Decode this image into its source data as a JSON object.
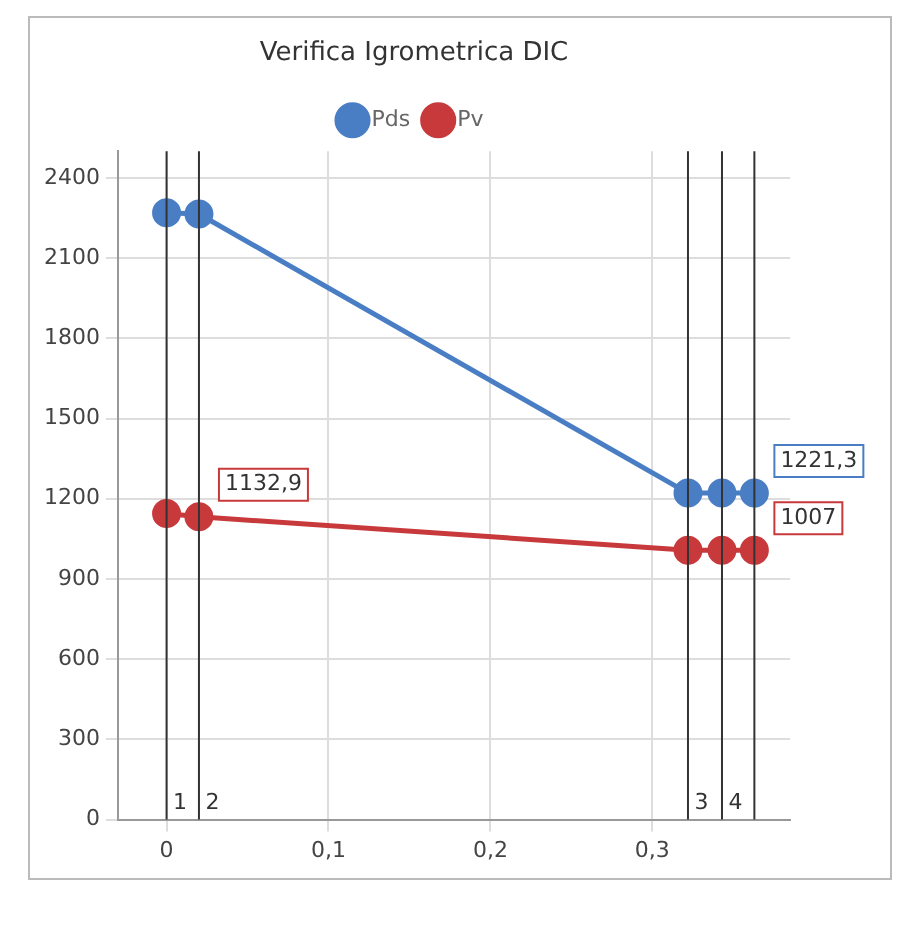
{
  "chart_data": {
    "type": "line",
    "title": "Verifica Igrometrica DIC",
    "x": [
      0,
      0.02,
      0.322,
      0.343,
      0.363
    ],
    "series": [
      {
        "name": "Pds",
        "color": "#4a7ec4",
        "values": [
          2270,
          2265,
          1221.3,
          1221.3,
          1221.3
        ],
        "value_labels": [
          null,
          null,
          null,
          null,
          "1221,3"
        ]
      },
      {
        "name": "Pv",
        "color": "#c8393c",
        "values": [
          1145,
          1132.9,
          1007,
          1007,
          1007
        ],
        "value_labels": [
          null,
          "1132,9",
          null,
          null,
          "1007"
        ]
      }
    ],
    "xlim": [
      -0.03,
      0.385
    ],
    "xticks": [
      0,
      {
        "value": 0.1,
        "label": "0,1"
      },
      {
        "value": 0.2,
        "label": "0,2"
      },
      {
        "value": 0.3,
        "label": "0,3"
      }
    ],
    "ylim": [
      0,
      2500
    ],
    "yticks": [
      0,
      300,
      600,
      900,
      1200,
      1500,
      1800,
      2100,
      2400
    ],
    "ref_lines": [
      {
        "axis": "x",
        "value": 0,
        "color": "#333333"
      },
      {
        "axis": "x",
        "value": 0.02,
        "color": "#333333"
      },
      {
        "axis": "x",
        "value": 0.322,
        "color": "#333333"
      },
      {
        "axis": "x",
        "value": 0.343,
        "color": "#333333"
      },
      {
        "axis": "x",
        "value": 0.363,
        "color": "#333333"
      }
    ],
    "annotations": [
      {
        "text": "1",
        "x": 0.004,
        "y": 60
      },
      {
        "text": "2",
        "x": 0.024,
        "y": 60
      },
      {
        "text": "3",
        "x": 0.326,
        "y": 60
      },
      {
        "text": "4",
        "x": 0.347,
        "y": 60
      }
    ],
    "grid": true,
    "legend": "top",
    "marker": "circle",
    "line_style": "solid"
  }
}
